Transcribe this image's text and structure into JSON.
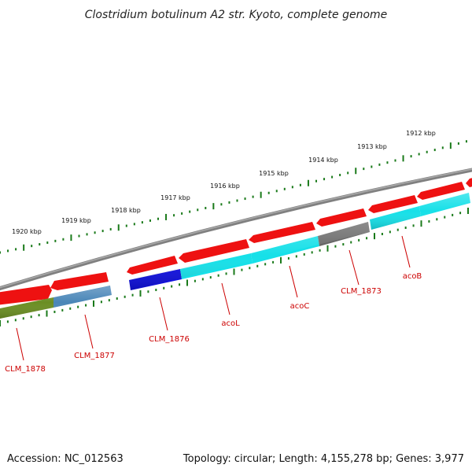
{
  "title": "Clostridium botulinum A2 str. Kyoto, complete genome",
  "footer": {
    "accession": "Accession: NC_012563",
    "summary": "Topology: circular; Length: 4,155,278 bp; Genes: 3,977"
  },
  "scale_labels": [
    "1912 kbp",
    "1913 kbp",
    "1914 kbp",
    "1915 kbp",
    "1916 kbp",
    "1917 kbp",
    "1918 kbp",
    "1919 kbp",
    "1920 kbp"
  ],
  "gene_labels": [
    "acoB",
    "CLM_1873",
    "acoC",
    "acoL",
    "CLM_1876",
    "CLM_1877",
    "CLM_1878"
  ],
  "colors": {
    "backbone": "#808080",
    "forward_cds": "#ee1111",
    "scale_ticks": "#1a7a1a",
    "label": "#cc0000",
    "cog_cyan": "#16e0e8",
    "cog_blue": "#1010e0",
    "cog_gray": "#666666",
    "cog_steel": "#4a86b8",
    "cog_olive": "#6b8e23"
  }
}
